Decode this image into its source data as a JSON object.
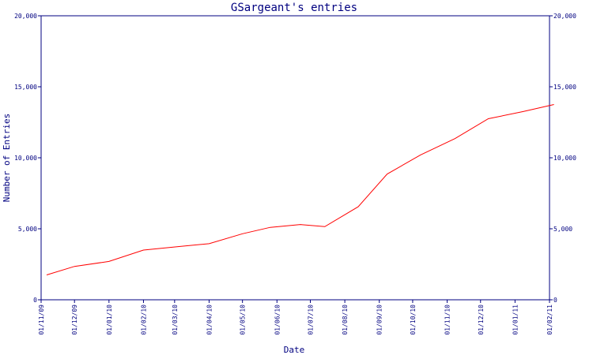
{
  "chart_data": {
    "type": "line",
    "title": "GSargeant's entries",
    "xlabel": "Date",
    "ylabel": "Number of Entries",
    "ylim": [
      0,
      20000
    ],
    "y_ticks": [
      0,
      5000,
      10000,
      15000,
      20000
    ],
    "y_tick_labels": [
      "0",
      "5,000",
      "10,000",
      "15,000",
      "20,000"
    ],
    "x_ticks": [
      "2009-11-01",
      "2009-12-01",
      "2010-01-01",
      "2010-02-01",
      "2010-03-01",
      "2010-04-01",
      "2010-05-01",
      "2010-06-01",
      "2010-07-01",
      "2010-08-01",
      "2010-09-01",
      "2010-10-01",
      "2010-11-01",
      "2010-12-01",
      "2011-01-01",
      "2011-02-01"
    ],
    "x_tick_labels": [
      "01/11/09",
      "01/12/09",
      "01/01/10",
      "01/02/10",
      "01/03/10",
      "01/04/10",
      "01/05/10",
      "01/06/10",
      "01/07/10",
      "01/08/10",
      "01/09/10",
      "01/10/10",
      "01/11/10",
      "01/12/10",
      "01/01/11",
      "01/02/11"
    ],
    "grid": false,
    "colors": {
      "axis": "#000080",
      "series": "#ff0000"
    },
    "series": [
      {
        "x": [
          "2009-11-06",
          "2009-12-01",
          "2010-01-01",
          "2010-02-01",
          "2010-03-05",
          "2010-04-01",
          "2010-05-01",
          "2010-05-26",
          "2010-06-22",
          "2010-07-14",
          "2010-08-13",
          "2010-09-08",
          "2010-10-08",
          "2010-11-08",
          "2010-12-08",
          "2011-01-08",
          "2011-02-05"
        ],
        "values": [
          1750,
          2350,
          2700,
          3500,
          3750,
          3950,
          4650,
          5100,
          5300,
          5150,
          6550,
          8850,
          10200,
          11350,
          12750,
          13250,
          13750
        ]
      }
    ]
  }
}
